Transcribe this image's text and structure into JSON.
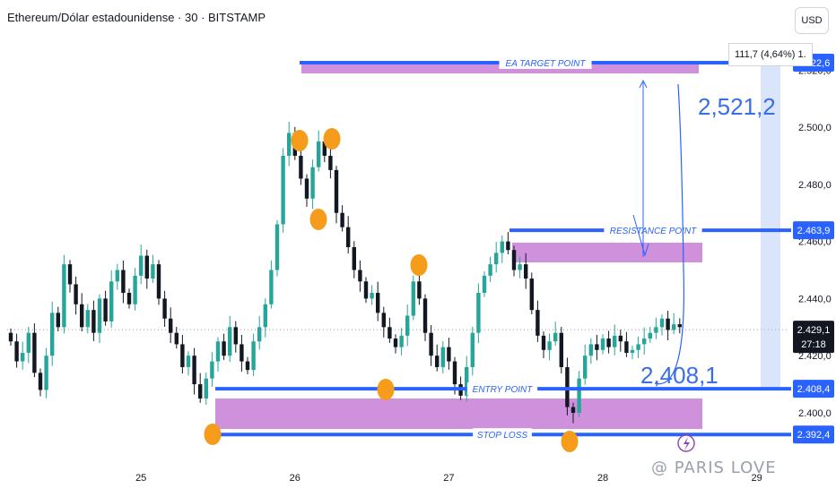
{
  "header": {
    "title": "Ethereum/Dólar estadounidense · 30 · BITSTAMP",
    "currency_button": "USD"
  },
  "tooltip": {
    "text": "111,7 (4,64%) 1."
  },
  "annotations": {
    "target_label": "EA TARGET POINT",
    "resistance_label": "RESISTANCE POINT",
    "entry_label": "ENTRY POINT",
    "stop_label": "STOP LOSS",
    "big_value_high": "2,521,2",
    "big_value_low": "2,408,1"
  },
  "price_tags": {
    "target": "2.522,6",
    "resistance": "2.463,9",
    "current": "2.429,1",
    "countdown": "27:18",
    "entry": "2.408,4",
    "stop": "2.392,4"
  },
  "watermark": "@ PARIS LOVE",
  "colors": {
    "up": "#26a69a",
    "down": "#131722",
    "level_line": "#2962ff",
    "zone_fill": "#c77dd6",
    "marker": "#f59c1a",
    "projection": "#bbcdf5",
    "tag_bg": "#2962ff"
  },
  "chart_data": {
    "type": "candlestick",
    "title": "Ethereum/Dólar estadounidense · 30 · BITSTAMP",
    "ylim": [
      2384,
      2532
    ],
    "yticks": [
      "2.400,0",
      "2.420,0",
      "2.440,0",
      "2.460,0",
      "2.480,0",
      "2.500,0",
      "2.520,0"
    ],
    "ytick_values": [
      2400,
      2420,
      2440,
      2460,
      2480,
      2500,
      2520
    ],
    "xticks": [
      "25",
      "26",
      "27",
      "28",
      "29"
    ],
    "xtick_index": [
      22,
      48,
      74,
      100,
      126
    ],
    "levels": [
      {
        "name": "EA TARGET POINT",
        "value": 2522.6
      },
      {
        "name": "RESISTANCE POINT",
        "value": 2463.9
      },
      {
        "name": "ENTRY POINT",
        "value": 2408.4
      },
      {
        "name": "STOP LOSS",
        "value": 2392.4
      }
    ],
    "current_price": 2429.1,
    "closes": [
      2425,
      2418,
      2421,
      2428,
      2414,
      2408,
      2420,
      2435,
      2430,
      2452,
      2445,
      2438,
      2430,
      2436,
      2428,
      2440,
      2432,
      2446,
      2450,
      2442,
      2438,
      2448,
      2455,
      2447,
      2452,
      2440,
      2433,
      2428,
      2424,
      2416,
      2420,
      2410,
      2405,
      2412,
      2418,
      2425,
      2420,
      2430,
      2424,
      2418,
      2415,
      2425,
      2430,
      2438,
      2450,
      2466,
      2490,
      2498,
      2490,
      2482,
      2475,
      2486,
      2495,
      2490,
      2485,
      2470,
      2465,
      2458,
      2450,
      2446,
      2440,
      2442,
      2435,
      2430,
      2426,
      2423,
      2427,
      2434,
      2446,
      2440,
      2428,
      2420,
      2416,
      2423,
      2418,
      2410,
      2406,
      2416,
      2428,
      2442,
      2448,
      2452,
      2456,
      2460,
      2457,
      2450,
      2452,
      2447,
      2436,
      2427,
      2422,
      2425,
      2428,
      2416,
      2402,
      2400,
      2412,
      2420,
      2424,
      2422,
      2426,
      2423,
      2427,
      2425,
      2421,
      2422,
      2424,
      2426,
      2428,
      2430,
      2433,
      2429,
      2431,
      2430
    ],
    "series": [
      {
        "name": "ETH/USD",
        "values": []
      }
    ]
  }
}
